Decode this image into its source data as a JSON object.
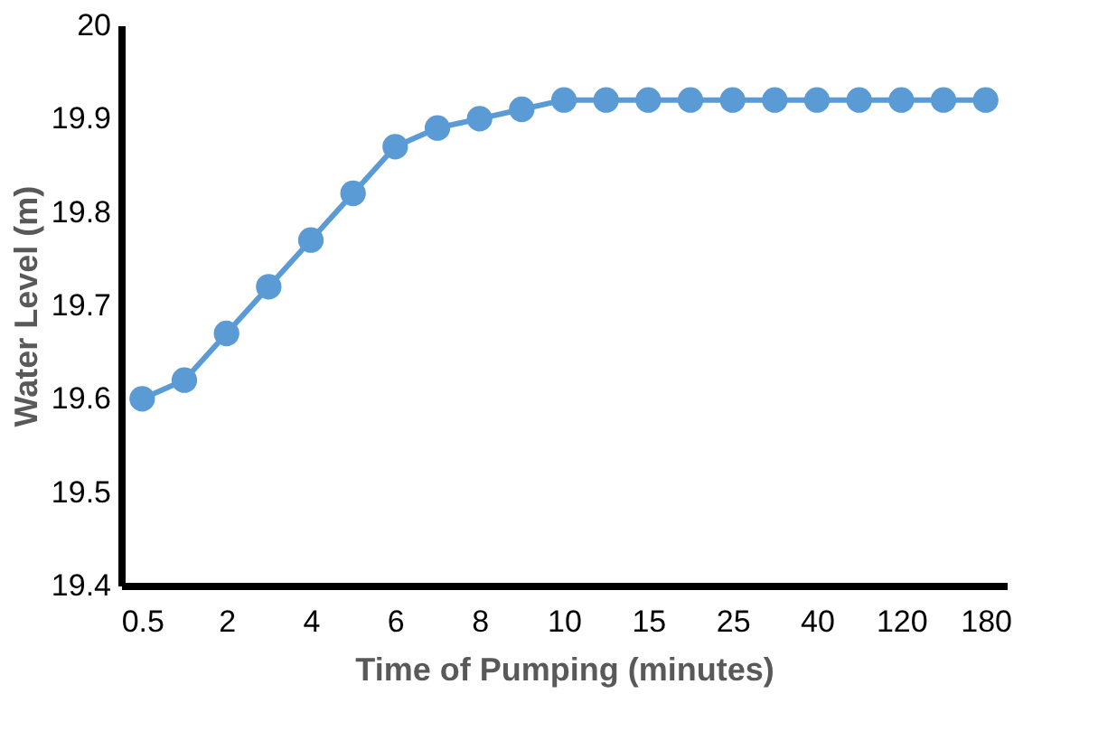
{
  "chart_data": {
    "type": "line",
    "xlabel": "Time  of Pumping (minutes)",
    "ylabel": "Water Level (m)",
    "categories": [
      "0.5",
      null,
      "2",
      null,
      "4",
      null,
      "6",
      null,
      "8",
      null,
      "10",
      null,
      "15",
      null,
      "25",
      null,
      "40",
      null,
      "120",
      null,
      "180"
    ],
    "series": [
      {
        "color": "#5b9bd5",
        "values": [
          19.6,
          19.62,
          19.67,
          19.72,
          19.77,
          19.82,
          19.87,
          19.89,
          19.9,
          19.91,
          19.92,
          19.92,
          19.92,
          19.92,
          19.92,
          19.92,
          19.92,
          19.92,
          19.92,
          19.92,
          19.92
        ]
      }
    ],
    "ylim": [
      19.4,
      20
    ],
    "yticks": [
      19.4,
      19.5,
      19.6,
      19.7,
      19.8,
      19.9,
      20
    ],
    "grid": false,
    "marker": "circle",
    "line_style": "solid"
  }
}
